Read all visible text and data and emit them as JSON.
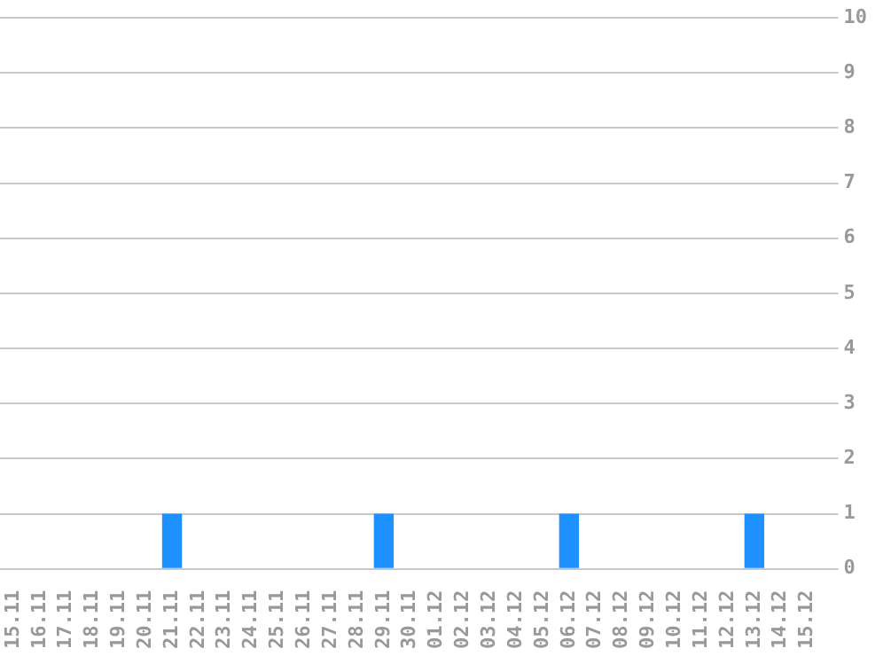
{
  "chart_data": {
    "type": "bar",
    "categories": [
      "15.11",
      "16.11",
      "17.11",
      "18.11",
      "19.11",
      "20.11",
      "21.11",
      "22.11",
      "23.11",
      "24.11",
      "25.11",
      "26.11",
      "27.11",
      "28.11",
      "29.11",
      "30.11",
      "01.12",
      "02.12",
      "03.12",
      "04.12",
      "05.12",
      "06.12",
      "07.12",
      "08.12",
      "09.12",
      "10.12",
      "11.12",
      "12.12",
      "13.12",
      "14.12",
      "15.12"
    ],
    "values": [
      0,
      0,
      0,
      0,
      0,
      0,
      1,
      0,
      0,
      0,
      0,
      0,
      0,
      0,
      1,
      0,
      0,
      0,
      0,
      0,
      0,
      1,
      0,
      0,
      0,
      0,
      0,
      0,
      1,
      0,
      0
    ],
    "color": "#1e90ff",
    "ylim": [
      0,
      10
    ],
    "yticks": [
      0,
      1,
      2,
      3,
      4,
      5,
      6,
      7,
      8,
      9,
      10
    ],
    "grid": "y"
  }
}
